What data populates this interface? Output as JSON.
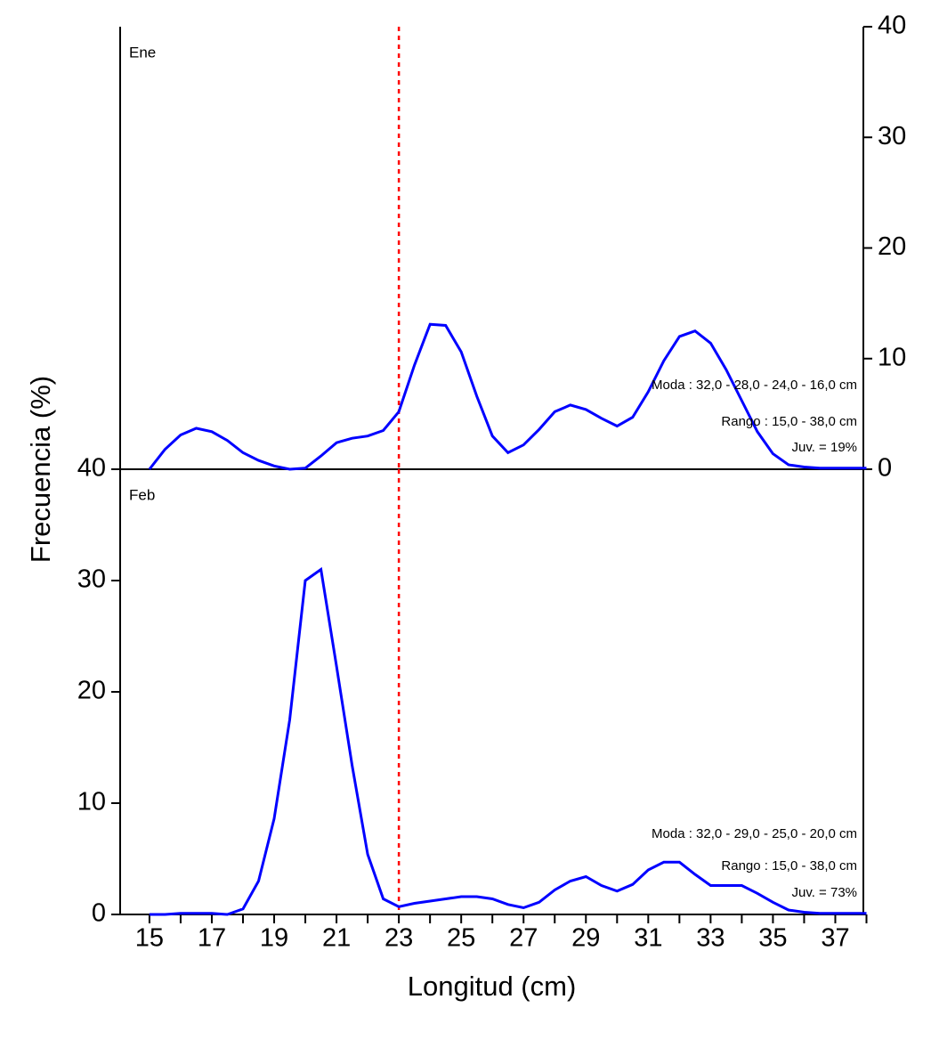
{
  "chart_data": [
    {
      "type": "line",
      "label": "Ene",
      "color": "#0000ff",
      "x": [
        15,
        15.5,
        16,
        16.5,
        17,
        17.5,
        18,
        18.5,
        19,
        19.5,
        20,
        20.5,
        21,
        21.5,
        22,
        22.5,
        23,
        23.5,
        24,
        24.5,
        25,
        25.5,
        26,
        26.5,
        27,
        27.5,
        28,
        28.5,
        29,
        29.5,
        30,
        30.5,
        31,
        31.5,
        32,
        32.5,
        33,
        33.5,
        34,
        34.5,
        35,
        35.5,
        36,
        36.5,
        37,
        37.5,
        38
      ],
      "values": [
        0,
        1.8,
        3.1,
        3.7,
        3.4,
        2.6,
        1.5,
        0.8,
        0.3,
        0,
        0.1,
        1.2,
        2.4,
        2.8,
        3.0,
        3.5,
        5.2,
        9.4,
        13.1,
        13.0,
        10.6,
        6.6,
        3.0,
        1.5,
        2.2,
        3.6,
        5.2,
        5.8,
        5.4,
        4.6,
        3.9,
        4.7,
        7.0,
        9.8,
        12.0,
        12.5,
        11.4,
        9.0,
        6.2,
        3.4,
        1.4,
        0.4,
        0.2,
        0.1,
        0.1,
        0.1,
        0.1
      ],
      "xlim": [
        14.06,
        37.9
      ],
      "ylim": [
        0,
        40
      ],
      "yticks": [
        0,
        10,
        20,
        30,
        40
      ],
      "yaxis_side": "right",
      "vline": 23,
      "vline_color": "#ff0000",
      "annotations": [
        "Moda : 32,0 - 28,0 - 24,0 - 16,0 cm",
        "Rango : 15,0 - 38,0 cm",
        "Juv. = 19%"
      ]
    },
    {
      "type": "line",
      "label": "Feb",
      "color": "#0000ff",
      "x": [
        15,
        15.5,
        16,
        16.5,
        17,
        17.5,
        18,
        18.5,
        19,
        19.5,
        20,
        20.5,
        21,
        21.5,
        22,
        22.5,
        23,
        23.5,
        24,
        24.5,
        25,
        25.5,
        26,
        26.5,
        27,
        27.5,
        28,
        28.5,
        29,
        29.5,
        30,
        30.5,
        31,
        31.5,
        32,
        32.5,
        33,
        33.5,
        34,
        34.5,
        35,
        35.5,
        36,
        36.5,
        37,
        37.5,
        38
      ],
      "values": [
        0,
        0,
        0.1,
        0.1,
        0.1,
        0,
        0.5,
        3.0,
        8.6,
        17.5,
        30.0,
        31.0,
        22.3,
        13.4,
        5.4,
        1.4,
        0.7,
        1.0,
        1.2,
        1.4,
        1.6,
        1.6,
        1.4,
        0.9,
        0.6,
        1.1,
        2.2,
        3.0,
        3.4,
        2.6,
        2.1,
        2.7,
        4.0,
        4.7,
        4.7,
        3.6,
        2.6,
        2.6,
        2.6,
        1.9,
        1.1,
        0.4,
        0.2,
        0.1,
        0.1,
        0.1,
        0.1
      ],
      "xlim": [
        14.06,
        37.9
      ],
      "ylim": [
        0,
        40
      ],
      "yticks": [
        0,
        10,
        20,
        30,
        40
      ],
      "yaxis_side": "left",
      "xticks": [
        15,
        17,
        19,
        21,
        23,
        25,
        27,
        29,
        31,
        33,
        35,
        37
      ],
      "x_minor_ticks": [
        16,
        18,
        20,
        22,
        24,
        26,
        28,
        30,
        32,
        34,
        36,
        38
      ],
      "vline": 23,
      "vline_color": "#ff0000",
      "xlabel": "Longitud (cm)",
      "ylabel": "Frecuencia (%)",
      "annotations": [
        "Moda : 32,0 - 29,0 - 25,0 - 20,0 cm",
        "Rango : 15,0 - 38,0 cm",
        "Juv. = 73%"
      ]
    }
  ]
}
